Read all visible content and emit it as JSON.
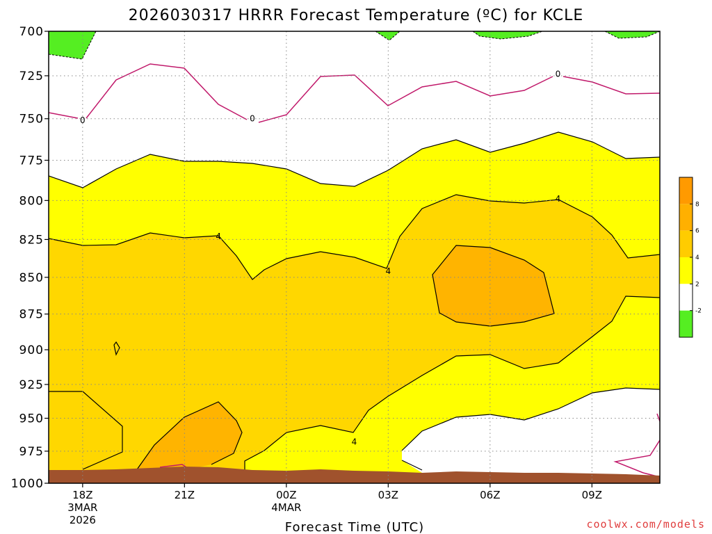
{
  "chart_data": {
    "type": "heatmap",
    "title": "2026030317 HRRR Forecast Temperature (ºC) for KCLE",
    "xlabel": "Forecast Time (UTC)",
    "ylabel": "",
    "source": "coolwx.com/models",
    "y_ticks": [
      "700",
      "725",
      "750",
      "775",
      "800",
      "825",
      "850",
      "875",
      "900",
      "925",
      "950",
      "975",
      "1000"
    ],
    "x_ticks": [
      {
        "lines": [
          "18Z",
          "3MAR",
          "2026"
        ]
      },
      {
        "lines": [
          "21Z"
        ]
      },
      {
        "lines": [
          "00Z",
          "4MAR"
        ]
      },
      {
        "lines": [
          "03Z"
        ]
      },
      {
        "lines": [
          "06Z"
        ]
      },
      {
        "lines": [
          "09Z"
        ]
      }
    ],
    "grid": true,
    "legend_placement": "right",
    "colorbar": {
      "labels": [
        "8",
        "6",
        "4",
        "2",
        "-2"
      ],
      "bands": [
        {
          "range": "8 to 10",
          "color": "#ff9a00"
        },
        {
          "range": "6 to 8",
          "color": "#ffb000"
        },
        {
          "range": "4 to 6",
          "color": "#ffcc00"
        },
        {
          "range": "2 to 4",
          "color": "#ffff00"
        },
        {
          "range": "-2 to 2",
          "color": "#ffffff"
        },
        {
          "range": "below -2",
          "color": "#55ee22"
        }
      ]
    },
    "contour_labels": [
      {
        "text": "0",
        "x": "18Z",
        "y": 751
      },
      {
        "text": "0",
        "x": "23Z",
        "y": 750
      },
      {
        "text": "0",
        "x": "08Z",
        "y": 724
      },
      {
        "text": "4",
        "x": "22Z",
        "y": 823
      },
      {
        "text": "4",
        "x": "03Z",
        "y": 846
      },
      {
        "text": "4",
        "x": "08Z",
        "y": 799
      },
      {
        "text": "4",
        "x": "02Z",
        "y": 968
      }
    ],
    "colors": {
      "below_minus2": "#55ee22",
      "band_2_4": "#ffff00",
      "band_4_6": "#ffd700",
      "band_6_8": "#ffb400",
      "zero_line": "#c0186a",
      "ground": "#a0522d",
      "source_text": "#e03c3c"
    }
  }
}
